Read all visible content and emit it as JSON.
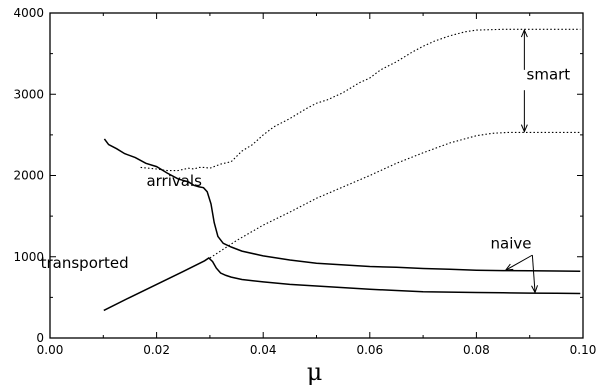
{
  "chart_data": {
    "type": "line",
    "title": "",
    "xlabel": "μ",
    "ylabel": "",
    "xlim": [
      0.0,
      0.1
    ],
    "ylim": [
      0,
      4000
    ],
    "x_ticks": [
      "0.00",
      "0.02",
      "0.04",
      "0.06",
      "0.08",
      "0.10"
    ],
    "y_ticks": [
      "0",
      "1000",
      "2000",
      "3000",
      "4000"
    ],
    "grid": false,
    "legend": "none",
    "series": [
      {
        "style": "solid",
        "x": [
          0.0102,
          0.011,
          0.0125,
          0.014,
          0.016,
          0.018,
          0.02,
          0.022,
          0.024,
          0.026,
          0.027,
          0.028,
          0.0288,
          0.0295,
          0.0302,
          0.0308,
          0.0315,
          0.0325,
          0.034,
          0.036,
          0.04,
          0.045,
          0.05,
          0.055,
          0.06,
          0.065,
          0.07,
          0.075,
          0.08,
          0.085,
          0.09,
          0.095,
          0.0995
        ],
        "y": [
          2450,
          2380,
          2330,
          2270,
          2220,
          2150,
          2110,
          2030,
          1960,
          1920,
          1880,
          1860,
          1850,
          1800,
          1650,
          1420,
          1250,
          1165,
          1120,
          1070,
          1010,
          960,
          920,
          900,
          880,
          870,
          855,
          845,
          835,
          830,
          828,
          825,
          822
        ]
      },
      {
        "style": "solid",
        "x": [
          0.0101,
          0.015,
          0.02,
          0.025,
          0.029,
          0.0298,
          0.0305,
          0.0312,
          0.032,
          0.033,
          0.034,
          0.036,
          0.04,
          0.045,
          0.05,
          0.055,
          0.06,
          0.065,
          0.07,
          0.075,
          0.08,
          0.085,
          0.09,
          0.095,
          0.0995
        ],
        "y": [
          340,
          500,
          660,
          820,
          950,
          985,
          940,
          860,
          800,
          770,
          750,
          720,
          690,
          660,
          640,
          620,
          600,
          585,
          570,
          565,
          560,
          556,
          552,
          550,
          548
        ]
      },
      {
        "style": "dotted",
        "x": [
          0.017,
          0.02,
          0.022,
          0.024,
          0.026,
          0.027,
          0.028,
          0.029,
          0.03,
          0.032,
          0.034,
          0.036,
          0.038,
          0.04,
          0.042,
          0.045,
          0.048,
          0.05,
          0.052,
          0.055,
          0.058,
          0.06,
          0.062,
          0.065,
          0.068,
          0.07,
          0.072,
          0.075,
          0.078,
          0.08,
          0.085,
          0.09,
          0.095,
          0.0995
        ],
        "y": [
          2100,
          2080,
          2060,
          2060,
          2090,
          2080,
          2100,
          2100,
          2090,
          2140,
          2170,
          2300,
          2380,
          2500,
          2600,
          2700,
          2820,
          2890,
          2930,
          3020,
          3140,
          3200,
          3300,
          3400,
          3520,
          3590,
          3650,
          3720,
          3770,
          3790,
          3800,
          3800,
          3800,
          3800
        ]
      },
      {
        "style": "dotted",
        "x": [
          0.03,
          0.035,
          0.04,
          0.045,
          0.05,
          0.055,
          0.06,
          0.065,
          0.07,
          0.075,
          0.08,
          0.083,
          0.086,
          0.09,
          0.095,
          0.0995
        ],
        "y": [
          985,
          1200,
          1390,
          1550,
          1720,
          1860,
          2000,
          2150,
          2280,
          2400,
          2490,
          2520,
          2530,
          2530,
          2530,
          2530
        ]
      }
    ],
    "annotations": [
      {
        "text": "smart",
        "x": 0.0935,
        "y": 3180
      },
      {
        "text": "arrivals",
        "x": 0.0233,
        "y": 1870
      },
      {
        "text": "naive",
        "x": 0.0865,
        "y": 1100
      },
      {
        "text": "transported",
        "x": 0.0065,
        "y": 860
      }
    ]
  }
}
